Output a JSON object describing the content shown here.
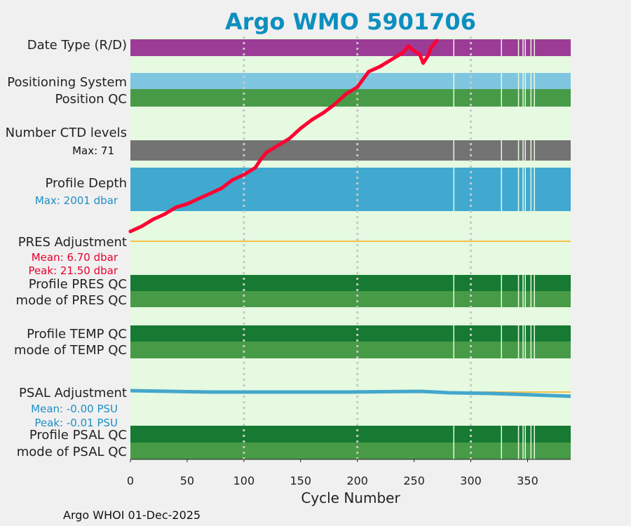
{
  "title": "Argo WMO 5901706",
  "xlabel": "Cycle Number",
  "footer": "Argo WHOI 01-Dec-2025",
  "colors": {
    "background": "#e6f9e1",
    "purple": "#9c3c97",
    "lightblue": "#7ec6e0",
    "green": "#479b47",
    "darkgreen": "#167a32",
    "gray": "#737373",
    "profile_blue": "#41a9d0",
    "red_line": "#ff0033",
    "adjust_line": "#f5c24b",
    "psal_line": "#44a7cc",
    "title": "#0d8fbf"
  },
  "row_labels": {
    "date_type": "Date Type (R/D)",
    "positioning_system": "Positioning System",
    "position_qc": "Position QC",
    "ctd_levels": "Number CTD levels",
    "ctd_max": "Max: 71",
    "profile_depth": "Profile Depth",
    "depth_max": "Max: 2001 dbar",
    "pres_adjustment": "PRES Adjustment",
    "pres_mean": "Mean: 6.70 dbar",
    "pres_peak": "Peak: 21.50 dbar",
    "profile_pres_qc": "Profile PRES QC",
    "mode_pres_qc": "mode of PRES QC",
    "profile_temp_qc": "Profile TEMP QC",
    "mode_temp_qc": "mode of TEMP QC",
    "psal_adjustment": "PSAL Adjustment",
    "psal_mean": "Mean: -0.00 PSU",
    "psal_peak": "Peak: -0.01 PSU",
    "profile_psal_qc": "Profile PSAL QC",
    "mode_psal_qc": "mode of PSAL QC"
  },
  "chart_data": {
    "type": "line",
    "title": "Argo WMO 5901706",
    "xlabel": "Cycle Number",
    "xlim": [
      0,
      388
    ],
    "xticks": [
      0,
      50,
      100,
      150,
      200,
      250,
      300,
      350
    ],
    "gridlines_x": [
      100,
      200,
      300
    ],
    "gaps_x": [
      285,
      327,
      342,
      346,
      348,
      353,
      356
    ],
    "series": [
      {
        "values": [
          [
            0,
            0.0
          ],
          [
            10,
            0.3
          ],
          [
            20,
            0.7
          ],
          [
            30,
            1.0
          ],
          [
            40,
            1.4
          ],
          [
            50,
            1.6
          ],
          [
            60,
            1.9
          ],
          [
            70,
            2.2
          ],
          [
            80,
            2.5
          ],
          [
            90,
            3.0
          ],
          [
            100,
            3.3
          ],
          [
            110,
            3.7
          ],
          [
            115,
            4.2
          ],
          [
            120,
            4.6
          ],
          [
            130,
            5.0
          ],
          [
            140,
            5.4
          ],
          [
            150,
            6.0
          ],
          [
            160,
            6.5
          ],
          [
            170,
            6.9
          ],
          [
            180,
            7.4
          ],
          [
            190,
            8.0
          ],
          [
            200,
            8.4
          ],
          [
            210,
            9.3
          ],
          [
            220,
            9.6
          ],
          [
            230,
            10.0
          ],
          [
            240,
            10.4
          ],
          [
            245,
            10.8
          ],
          [
            250,
            10.5
          ],
          [
            255,
            10.3
          ],
          [
            258,
            9.8
          ],
          [
            262,
            10.2
          ],
          [
            265,
            10.7
          ],
          [
            270,
            11.1
          ]
        ]
      }
    ]
  }
}
